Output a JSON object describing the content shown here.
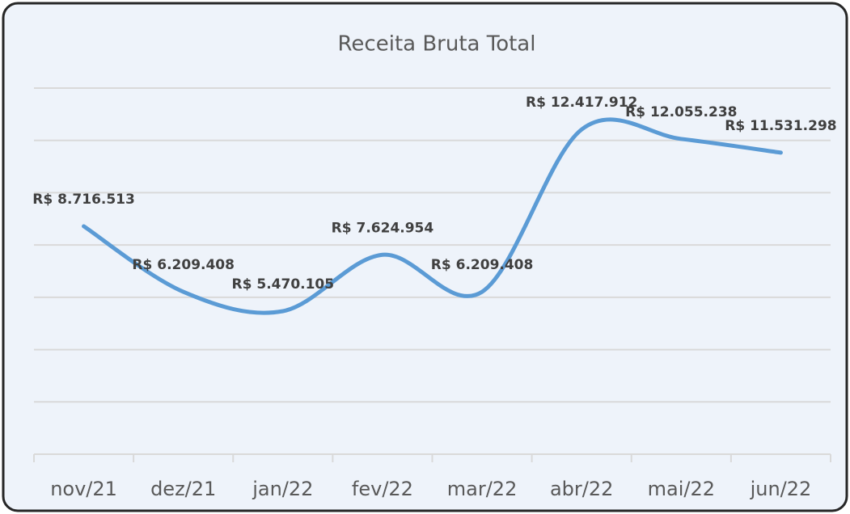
{
  "chart_data": {
    "type": "line",
    "title": "Receita Bruta Total",
    "categories": [
      "nov/21",
      "dez/21",
      "jan/22",
      "fev/22",
      "mar/22",
      "abr/22",
      "mai/22",
      "jun/22"
    ],
    "series": [
      {
        "name": "Receita Bruta Total",
        "color": "#5b9bd5",
        "values": [
          8716513,
          6209408,
          5470105,
          7624954,
          6209408,
          12417912,
          12055238,
          11531298
        ],
        "value_labels": [
          "R$ 8.716.513",
          "R$ 6.209.408",
          "R$ 5.470.105",
          "R$ 7.624.954",
          "R$ 6.209.408",
          "R$ 12.417.912",
          "R$ 12.055.238",
          "R$ 11.531.298"
        ]
      }
    ],
    "ylim": [
      0,
      14000000
    ],
    "yticks": [
      0,
      2000000,
      4000000,
      6000000,
      8000000,
      10000000,
      12000000,
      14000000
    ],
    "grid": true,
    "smooth": true
  }
}
